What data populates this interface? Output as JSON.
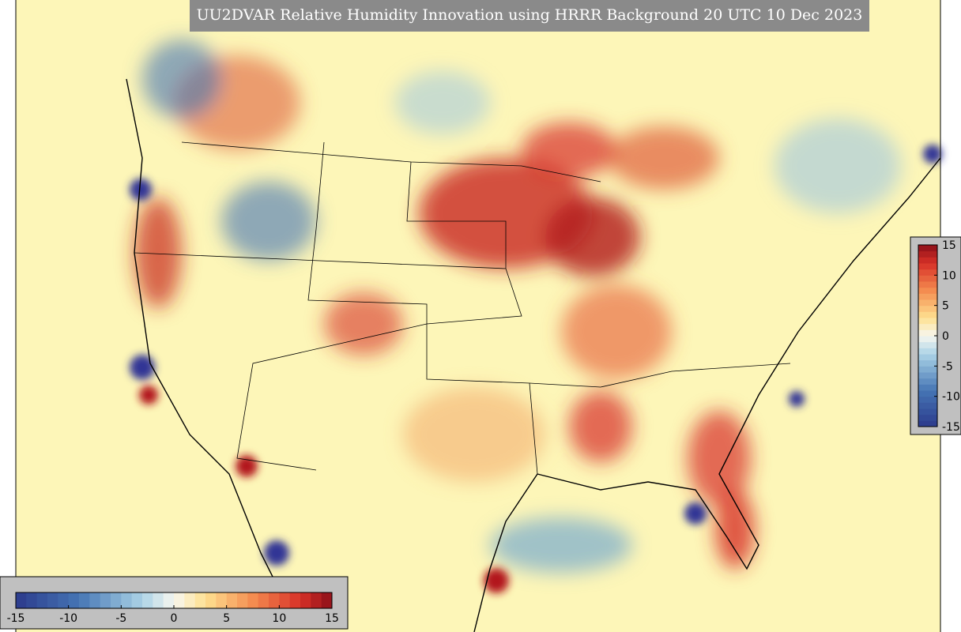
{
  "title": "UU2DVAR Relative Humidity Innovation using HRRR Background 20 UTC 10 Dec 2023",
  "colorbar": {
    "range": [
      -15,
      15
    ],
    "ticks": [
      -15,
      -10,
      -5,
      0,
      5,
      10,
      15
    ]
  }
}
